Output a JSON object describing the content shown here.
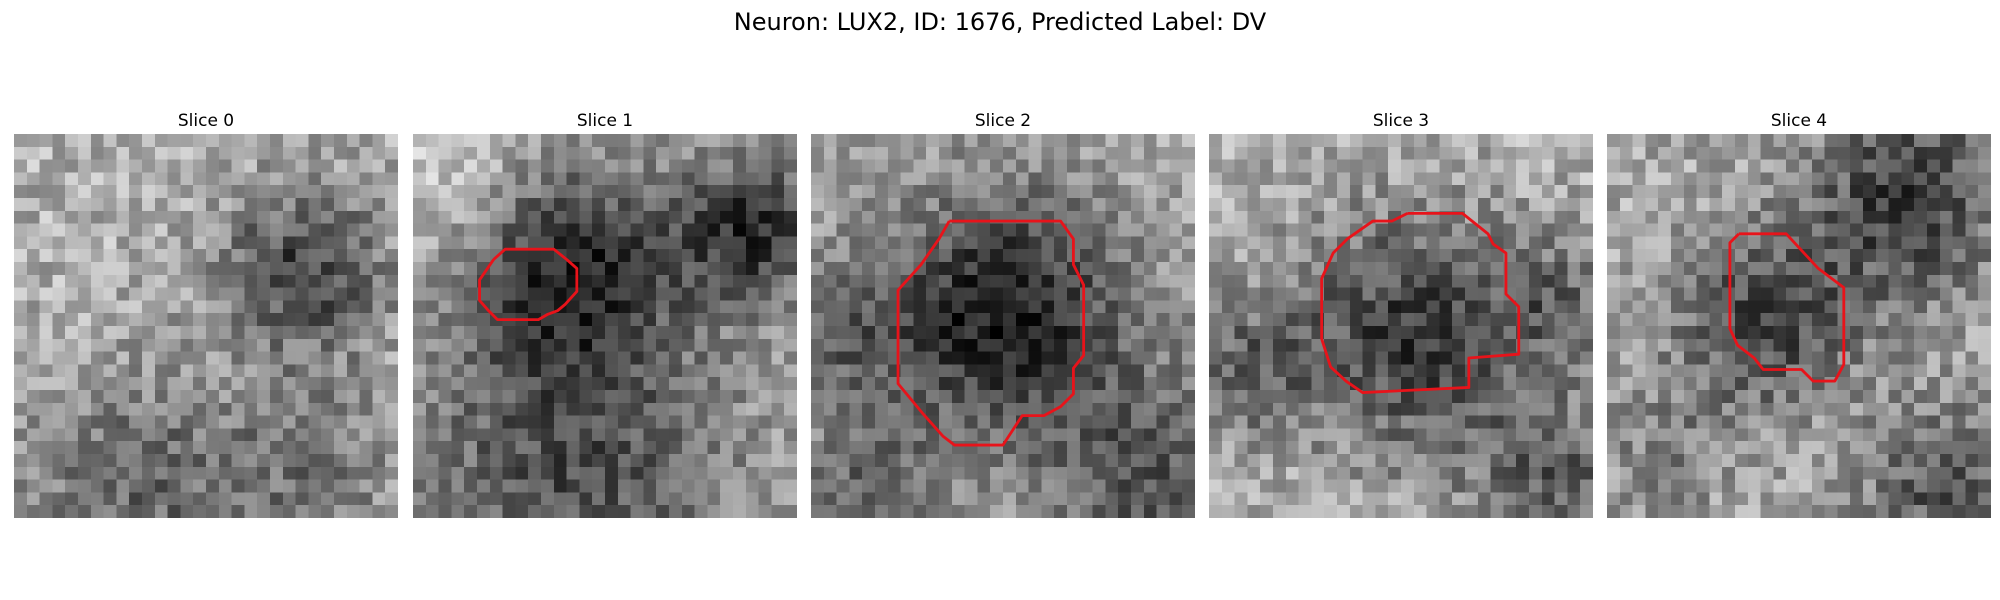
{
  "figure": {
    "title": "Neuron: LUX2, ID: 1676, Predicted Label: DV",
    "contour_color": "#e8131a"
  },
  "panels": [
    {
      "title": "Slice 0",
      "seed": 11,
      "blobs": [
        {
          "cx": 22.0,
          "cy": 10.0,
          "r": 4.5,
          "amp": -110
        },
        {
          "cx": 8.0,
          "cy": 26.5,
          "r": 6.0,
          "amp": -70
        },
        {
          "cx": 22.0,
          "cy": 26.0,
          "r": 6.0,
          "amp": -55
        }
      ],
      "base": 175,
      "noise": 45,
      "contour": []
    },
    {
      "title": "Slice 1",
      "seed": 23,
      "blobs": [
        {
          "cx": 12.0,
          "cy": 10.0,
          "r": 6.0,
          "amp": -120
        },
        {
          "cx": 26.0,
          "cy": 7.0,
          "r": 4.0,
          "amp": -120
        },
        {
          "cx": 12.0,
          "cy": 26.0,
          "r": 9.0,
          "amp": -90
        },
        {
          "cx": 2.0,
          "cy": 2.0,
          "r": 5.0,
          "amp": 40
        }
      ],
      "base": 170,
      "noise": 40,
      "contour": [
        [
          6.3,
          9.8
        ],
        [
          7.2,
          9.0
        ],
        [
          11.0,
          9.0
        ],
        [
          12.0,
          9.8
        ],
        [
          12.8,
          10.5
        ],
        [
          12.8,
          12.3
        ],
        [
          11.9,
          13.3
        ],
        [
          11.3,
          13.8
        ],
        [
          10.5,
          14.1
        ],
        [
          9.8,
          14.5
        ],
        [
          6.6,
          14.5
        ],
        [
          5.9,
          13.8
        ],
        [
          5.2,
          13.0
        ],
        [
          5.2,
          11.4
        ],
        [
          6.3,
          9.8
        ]
      ]
    },
    {
      "title": "Slice 2",
      "seed": 37,
      "blobs": [
        {
          "cx": 14.5,
          "cy": 13.5,
          "r": 6.5,
          "amp": -140
        },
        {
          "cx": 26.0,
          "cy": 26.5,
          "r": 6.0,
          "amp": -80
        },
        {
          "cx": 4.0,
          "cy": 27.0,
          "r": 4.0,
          "amp": -60
        },
        {
          "cx": 1.5,
          "cy": 15.0,
          "r": 4.0,
          "amp": -60
        }
      ],
      "base": 165,
      "noise": 40,
      "contour": [
        [
          10.8,
          6.8
        ],
        [
          19.5,
          6.8
        ],
        [
          20.5,
          8.2
        ],
        [
          20.5,
          10.2
        ],
        [
          21.3,
          11.8
        ],
        [
          21.3,
          17.3
        ],
        [
          20.5,
          18.3
        ],
        [
          20.5,
          20.3
        ],
        [
          19.5,
          21.3
        ],
        [
          18.2,
          22.0
        ],
        [
          16.5,
          22.0
        ],
        [
          15.0,
          24.3
        ],
        [
          11.2,
          24.3
        ],
        [
          10.3,
          23.6
        ],
        [
          8.7,
          21.8
        ],
        [
          6.8,
          19.5
        ],
        [
          6.8,
          12.2
        ],
        [
          8.6,
          10.2
        ],
        [
          10.0,
          8.2
        ],
        [
          10.8,
          6.8
        ]
      ]
    },
    {
      "title": "Slice 3",
      "seed": 51,
      "blobs": [
        {
          "cx": 15.5,
          "cy": 15.0,
          "r": 6.5,
          "amp": -120
        },
        {
          "cx": 2.0,
          "cy": 18.0,
          "r": 4.0,
          "amp": -70
        },
        {
          "cx": 27.0,
          "cy": 12.5,
          "r": 3.5,
          "amp": -60
        },
        {
          "cx": 27.0,
          "cy": 27.0,
          "r": 5.0,
          "amp": -80
        }
      ],
      "base": 175,
      "noise": 45,
      "contour": [
        [
          15.5,
          6.2
        ],
        [
          19.8,
          6.2
        ],
        [
          21.8,
          7.8
        ],
        [
          22.2,
          8.6
        ],
        [
          23.2,
          9.3
        ],
        [
          23.2,
          12.5
        ],
        [
          24.2,
          13.5
        ],
        [
          24.2,
          17.2
        ],
        [
          20.3,
          17.5
        ],
        [
          20.3,
          19.8
        ],
        [
          12.0,
          20.2
        ],
        [
          10.7,
          19.3
        ],
        [
          9.5,
          18.2
        ],
        [
          8.8,
          16.0
        ],
        [
          8.8,
          11.3
        ],
        [
          9.7,
          9.3
        ],
        [
          10.8,
          8.2
        ],
        [
          12.8,
          6.8
        ],
        [
          14.3,
          6.8
        ],
        [
          15.5,
          6.2
        ]
      ]
    },
    {
      "title": "Slice 4",
      "seed": 67,
      "blobs": [
        {
          "cx": 12.0,
          "cy": 14.0,
          "r": 5.0,
          "amp": -100
        },
        {
          "cx": 23.0,
          "cy": 4.5,
          "r": 5.5,
          "amp": -110
        },
        {
          "cx": 26.0,
          "cy": 27.0,
          "r": 4.5,
          "amp": -90
        },
        {
          "cx": 4.0,
          "cy": 24.0,
          "r": 4.0,
          "amp": -40
        }
      ],
      "base": 170,
      "noise": 45,
      "contour": [
        [
          10.3,
          7.8
        ],
        [
          14.0,
          7.8
        ],
        [
          16.5,
          10.5
        ],
        [
          18.5,
          12.0
        ],
        [
          18.5,
          18.0
        ],
        [
          17.8,
          19.3
        ],
        [
          17.1,
          19.3
        ],
        [
          16.1,
          19.3
        ],
        [
          15.2,
          18.4
        ],
        [
          14.0,
          18.4
        ],
        [
          12.2,
          18.4
        ],
        [
          11.5,
          17.5
        ],
        [
          10.2,
          16.5
        ],
        [
          9.6,
          15.2
        ],
        [
          9.6,
          8.5
        ],
        [
          10.3,
          7.8
        ]
      ]
    }
  ]
}
